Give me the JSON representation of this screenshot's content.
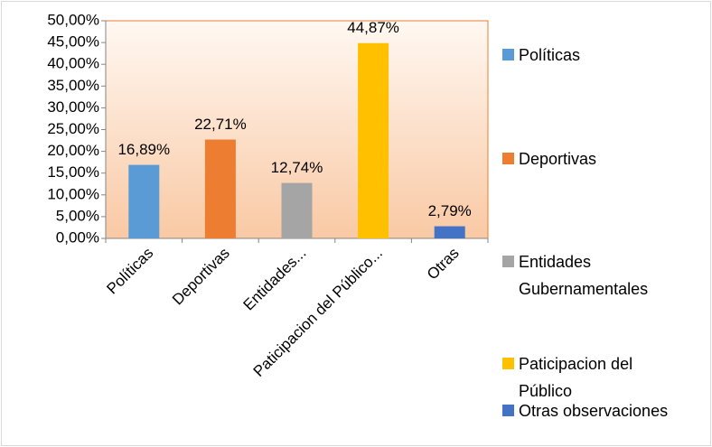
{
  "chart_data": {
    "type": "bar",
    "categories": [
      "Políticas",
      "Deportivas",
      "Entidades...",
      "Paticipacion del Público...",
      "Otras"
    ],
    "values": [
      16.89,
      22.71,
      12.74,
      44.87,
      2.79
    ],
    "value_labels": [
      "16,89%",
      "22,71%",
      "12,74%",
      "44,87%",
      "2,79%"
    ],
    "colors": [
      "#5b9bd5",
      "#ed7d31",
      "#a5a5a5",
      "#ffc000",
      "#4472c4"
    ],
    "legend": [
      "Políticas",
      "Deportivas",
      "Entidades Gubernamentales",
      "Paticipacion del Público",
      "Otras observaciones"
    ],
    "legend_position": "right",
    "ylim": [
      0,
      50
    ],
    "yticks": [
      {
        "value": 0,
        "label": "0,00%"
      },
      {
        "value": 5,
        "label": "5,00%"
      },
      {
        "value": 10,
        "label": "10,00%"
      },
      {
        "value": 15,
        "label": "15,00%"
      },
      {
        "value": 20,
        "label": "20,00%"
      },
      {
        "value": 25,
        "label": "25,00%"
      },
      {
        "value": 30,
        "label": "30,00%"
      },
      {
        "value": 35,
        "label": "35,00%"
      },
      {
        "value": 40,
        "label": "40,00%"
      },
      {
        "value": 45,
        "label": "45,00%"
      },
      {
        "value": 50,
        "label": "50,00%"
      }
    ]
  }
}
